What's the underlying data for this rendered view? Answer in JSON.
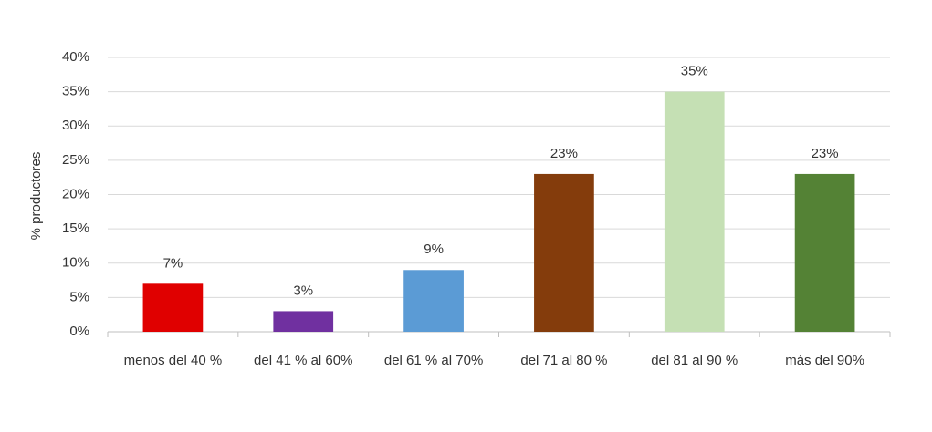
{
  "chart_data": {
    "type": "bar",
    "y_label": "% productores",
    "categories": [
      "menos del 40 %",
      "del 41 % al 60%",
      "del 61 % al 70%",
      "del 71 al 80 %",
      "del 81 al 90 %",
      "más del 90%"
    ],
    "values": [
      7,
      3,
      9,
      23,
      35,
      23
    ],
    "value_labels": [
      "7%",
      "3%",
      "9%",
      "23%",
      "35%",
      "23%"
    ],
    "colors": [
      "#e00000",
      "#7030a0",
      "#5b9bd5",
      "#843c0c",
      "#c5e0b4",
      "#548235"
    ],
    "ylim": [
      0,
      40
    ],
    "yticks": [
      {
        "value": 0,
        "label": "0%"
      },
      {
        "value": 5,
        "label": "5%"
      },
      {
        "value": 10,
        "label": "10%"
      },
      {
        "value": 15,
        "label": "15%"
      },
      {
        "value": 20,
        "label": "20%"
      },
      {
        "value": 25,
        "label": "25%"
      },
      {
        "value": 30,
        "label": "30%"
      },
      {
        "value": 35,
        "label": "35%"
      },
      {
        "value": 40,
        "label": "40%"
      }
    ],
    "grid": true
  }
}
